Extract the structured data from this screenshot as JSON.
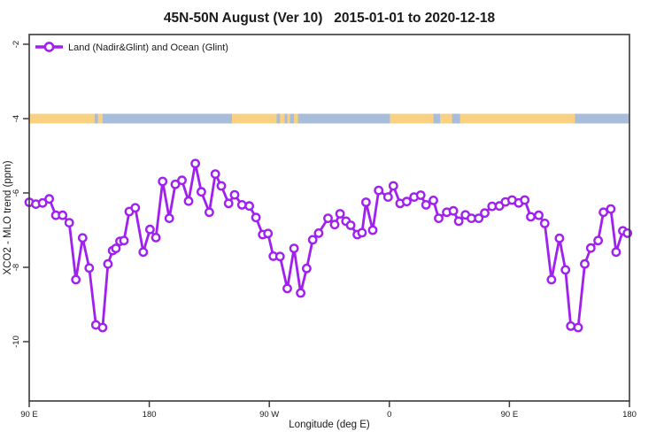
{
  "title": "45N-50N August (Ver 10)   2015-01-01 to 2020-12-18",
  "legend": {
    "label": "Land (Nadir&Glint) and Ocean (Glint)"
  },
  "colors": {
    "line": "#A020F0",
    "marker_fill": "#ffffff",
    "land": "#F9D182",
    "ocean": "#A8BDD9",
    "axis": "#3a3a3a",
    "text": "#1a1a1a"
  },
  "chart_data": {
    "type": "line",
    "title": "45N-50N August (Ver 10)   2015-01-01 to 2020-12-18",
    "xlabel": "Longitude (deg E)",
    "ylabel": "XCO2 - MLO trend (ppm)",
    "xlim": [
      90,
      540
    ],
    "ylim": [
      -11.7,
      -1.8
    ],
    "grid": false,
    "legend_position": "top-left",
    "marker": "open-circle",
    "x_ticks": [
      {
        "value": 90,
        "label": "90 E"
      },
      {
        "value": 180,
        "label": "180"
      },
      {
        "value": 270,
        "label": "90 W"
      },
      {
        "value": 360,
        "label": "0"
      },
      {
        "value": 450,
        "label": "90 E"
      },
      {
        "value": 540,
        "label": "180"
      }
    ],
    "y_ticks": [
      {
        "value": -2,
        "label": "-2"
      },
      {
        "value": -4,
        "label": "-4"
      },
      {
        "value": -6,
        "label": "-6"
      },
      {
        "value": -8,
        "label": "-8"
      },
      {
        "value": -10,
        "label": "-10"
      }
    ],
    "land_ocean_band": {
      "y_value": -4,
      "land_color": "#F9D182",
      "ocean_color": "#A8BDD9",
      "segments": [
        {
          "type": "land",
          "from": 90,
          "to": 139
        },
        {
          "type": "ocean",
          "from": 139,
          "to": 242
        },
        {
          "type": "land",
          "from": 141.5,
          "to": 145
        },
        {
          "type": "land",
          "from": 242,
          "to": 281.5
        },
        {
          "type": "ocean",
          "from": 275.5,
          "to": 278
        },
        {
          "type": "ocean",
          "from": 281.5,
          "to": 360.5
        },
        {
          "type": "land",
          "from": 283.5,
          "to": 285.5
        },
        {
          "type": "land",
          "from": 288.5,
          "to": 291.5
        },
        {
          "type": "land",
          "from": 360.5,
          "to": 499
        },
        {
          "type": "ocean",
          "from": 393,
          "to": 398
        },
        {
          "type": "ocean",
          "from": 407,
          "to": 413
        },
        {
          "type": "ocean",
          "from": 499,
          "to": 539.5
        }
      ]
    },
    "series": [
      {
        "name": "Land (Nadir&Glint) and Ocean (Glint)",
        "color": "#A020F0",
        "points": [
          [
            90,
            -6.25
          ],
          [
            95,
            -6.3
          ],
          [
            100,
            -6.27
          ],
          [
            105,
            -6.16
          ],
          [
            110,
            -6.6
          ],
          [
            115,
            -6.6
          ],
          [
            120,
            -6.8
          ],
          [
            125,
            -8.33
          ],
          [
            130,
            -7.21
          ],
          [
            135,
            -8.02
          ],
          [
            140,
            -9.55
          ],
          [
            145,
            -9.62
          ],
          [
            149,
            -7.91
          ],
          [
            152.5,
            -7.55
          ],
          [
            155,
            -7.49
          ],
          [
            158,
            -7.3
          ],
          [
            161,
            -7.28
          ],
          [
            165,
            -6.5
          ],
          [
            169.5,
            -6.4
          ],
          [
            175.5,
            -7.59
          ],
          [
            180.5,
            -6.98
          ],
          [
            185,
            -7.2
          ],
          [
            190,
            -5.69
          ],
          [
            195,
            -6.68
          ],
          [
            199.5,
            -5.77
          ],
          [
            204.5,
            -5.66
          ],
          [
            209.5,
            -6.22
          ],
          [
            214.5,
            -5.21
          ],
          [
            219,
            -5.97
          ],
          [
            225,
            -6.52
          ],
          [
            229.5,
            -5.49
          ],
          [
            234,
            -5.81
          ],
          [
            239.5,
            -6.28
          ],
          [
            244,
            -6.05
          ],
          [
            249.5,
            -6.32
          ],
          [
            255,
            -6.35
          ],
          [
            260,
            -6.66
          ],
          [
            265,
            -7.12
          ],
          [
            269,
            -7.09
          ],
          [
            273,
            -7.7
          ],
          [
            278,
            -7.71
          ],
          [
            283.5,
            -8.57
          ],
          [
            288.5,
            -7.49
          ],
          [
            293.5,
            -8.69
          ],
          [
            298,
            -8.03
          ],
          [
            302.5,
            -7.26
          ],
          [
            307,
            -7.08
          ],
          [
            314,
            -6.68
          ],
          [
            319,
            -6.85
          ],
          [
            323,
            -6.56
          ],
          [
            327.5,
            -6.76
          ],
          [
            331,
            -6.87
          ],
          [
            336,
            -7.12
          ],
          [
            339.5,
            -7.07
          ],
          [
            342.5,
            -6.25
          ],
          [
            347.5,
            -7.0
          ],
          [
            352,
            -5.93
          ],
          [
            359,
            -6.11
          ],
          [
            363,
            -5.81
          ],
          [
            368,
            -6.28
          ],
          [
            373,
            -6.23
          ],
          [
            378.5,
            -6.11
          ],
          [
            383.5,
            -6.06
          ],
          [
            387.5,
            -6.32
          ],
          [
            393,
            -6.2
          ],
          [
            397,
            -6.68
          ],
          [
            403,
            -6.52
          ],
          [
            408,
            -6.48
          ],
          [
            412,
            -6.76
          ],
          [
            417,
            -6.59
          ],
          [
            421.5,
            -6.68
          ],
          [
            427,
            -6.68
          ],
          [
            431.5,
            -6.54
          ],
          [
            437,
            -6.36
          ],
          [
            442.5,
            -6.35
          ],
          [
            447,
            -6.24
          ],
          [
            452,
            -6.19
          ],
          [
            457,
            -6.27
          ],
          [
            461.5,
            -6.19
          ],
          [
            466,
            -6.64
          ],
          [
            472,
            -6.6
          ],
          [
            476.5,
            -6.82
          ],
          [
            481.5,
            -8.33
          ],
          [
            487.5,
            -7.22
          ],
          [
            492,
            -8.07
          ],
          [
            496,
            -9.58
          ],
          [
            501.5,
            -9.62
          ],
          [
            506.5,
            -7.91
          ],
          [
            511,
            -7.48
          ],
          [
            516.5,
            -7.28
          ],
          [
            520.5,
            -6.52
          ],
          [
            526,
            -6.43
          ],
          [
            530,
            -7.59
          ],
          [
            535,
            -7.02
          ],
          [
            538.5,
            -7.08
          ]
        ]
      }
    ]
  }
}
